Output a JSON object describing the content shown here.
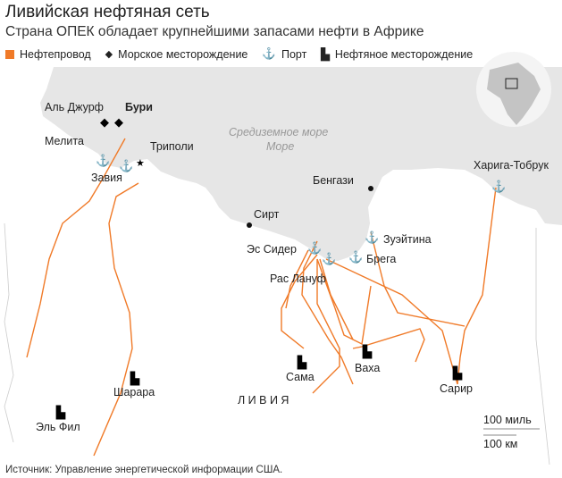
{
  "title": "Ливийская нефтяная сеть",
  "subtitle": "Страна ОПЕК обладает крупнейшими запасами нефти в Африке",
  "legend": {
    "pipeline": "Нефтепровод",
    "offshore_field": "Морское месторождение",
    "port": "Порт",
    "oil_field": "Нефтяное месторождение",
    "pipeline_color": "#f07a28"
  },
  "map": {
    "sea_label": "Средиземное море",
    "sea_label_2": "Море",
    "country_label": "Л И В И Я",
    "offshore_fields": [
      "Аль Джурф",
      "Бури"
    ],
    "cities": [
      "Мелита",
      "Триполи",
      "Бенгази",
      "Сирт"
    ],
    "ports": [
      "Завия",
      "Эс Сидер",
      "Рас Лануф",
      "Брега",
      "Зуэйтина",
      "Харига-Тобрук"
    ],
    "oil_fields": [
      "Шарара",
      "Эль Фил",
      "Сама",
      "Ваха",
      "Сарир"
    ],
    "scale_miles": "100 миль",
    "scale_km": "100 км",
    "sea_color": "#e6e6e6"
  },
  "source": "Источник: Управление энергетической информации США."
}
